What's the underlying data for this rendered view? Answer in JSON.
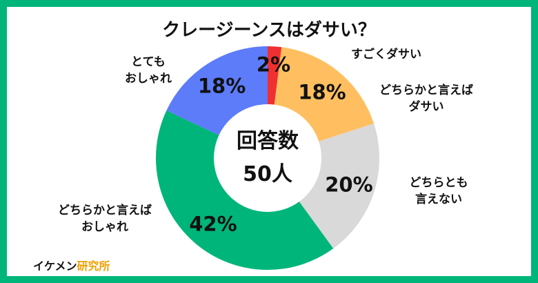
{
  "chart_data": {
    "type": "pie",
    "title": "クレージーンスはダサい？",
    "center_text": [
      "回答数",
      "50人"
    ],
    "slices": [
      {
        "label": "すごくダサい",
        "value": 2,
        "value_label": "2%",
        "color": "#f03030"
      },
      {
        "label": "どちらかと言えば\nダサい",
        "value": 18,
        "value_label": "18%",
        "color": "#ffbf60"
      },
      {
        "label": "どちらとも\n言えない",
        "value": 20,
        "value_label": "20%",
        "color": "#d9d9d9"
      },
      {
        "label": "どちらかと言えば\nおしゃれ",
        "value": 42,
        "value_label": "42%",
        "color": "#00b57a"
      },
      {
        "label": "とても\nおしゃれ",
        "value": 18,
        "value_label": "18%",
        "color": "#5c7cfa"
      }
    ]
  },
  "brand": {
    "part1": "イケメン",
    "part2": "研究所",
    "color1": "#111111",
    "color2": "#f2a000"
  },
  "frame_color": "#00b57a"
}
